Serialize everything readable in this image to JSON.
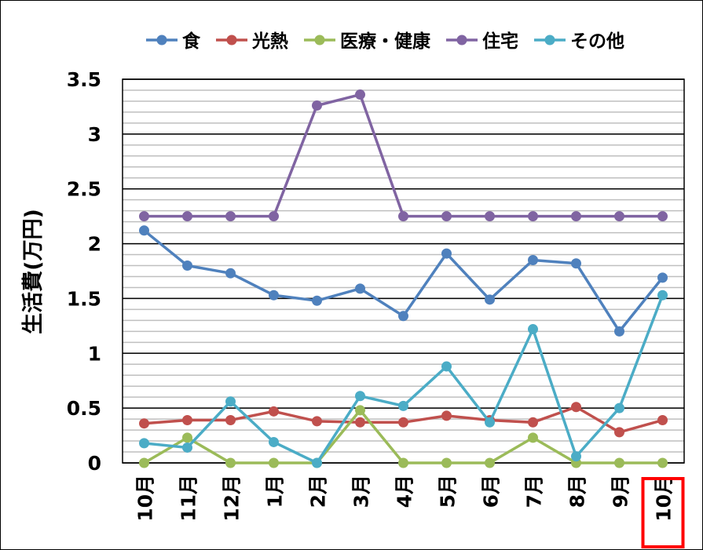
{
  "chart_data": {
    "type": "line",
    "title": "",
    "xlabel": "",
    "ylabel": "生活費(万円)",
    "ylim": [
      0,
      3.5
    ],
    "yticks": [
      "0",
      "0.5",
      "1",
      "1.5",
      "2",
      "2.5",
      "3",
      "3.5"
    ],
    "ytick_values": [
      0,
      0.5,
      1,
      1.5,
      2,
      2.5,
      3,
      3.5
    ],
    "minor_grid_step": 0.1,
    "legend_position": "top",
    "categories": [
      "10月",
      "11月",
      "12月",
      "1月",
      "2月",
      "3月",
      "4月",
      "5月",
      "6月",
      "7月",
      "8月",
      "9月",
      "10月"
    ],
    "highlighted_category_index": 12,
    "highlight_color": "#ff0000",
    "series": [
      {
        "name": "食",
        "color": "#4f81bd",
        "values": [
          2.12,
          1.8,
          1.73,
          1.53,
          1.48,
          1.59,
          1.34,
          1.91,
          1.49,
          1.85,
          1.82,
          1.2,
          1.69
        ]
      },
      {
        "name": "光熱",
        "color": "#c0504d",
        "values": [
          0.36,
          0.39,
          0.39,
          0.47,
          0.38,
          0.37,
          0.37,
          0.43,
          0.39,
          0.37,
          0.51,
          0.28,
          0.39
        ]
      },
      {
        "name": "医療・健康",
        "color": "#9bbb59",
        "values": [
          0,
          0.23,
          0,
          0,
          0,
          0.48,
          0,
          0,
          0,
          0.23,
          0,
          0,
          0
        ]
      },
      {
        "name": "住宅",
        "color": "#8064a2",
        "values": [
          2.25,
          2.25,
          2.25,
          2.25,
          3.26,
          3.36,
          2.25,
          2.25,
          2.25,
          2.25,
          2.25,
          2.25,
          2.25
        ]
      },
      {
        "name": "その他",
        "color": "#4bacc6",
        "values": [
          0.18,
          0.14,
          0.56,
          0.19,
          0,
          0.61,
          0.52,
          0.88,
          0.37,
          1.22,
          0.06,
          0.5,
          1.53
        ]
      }
    ]
  }
}
